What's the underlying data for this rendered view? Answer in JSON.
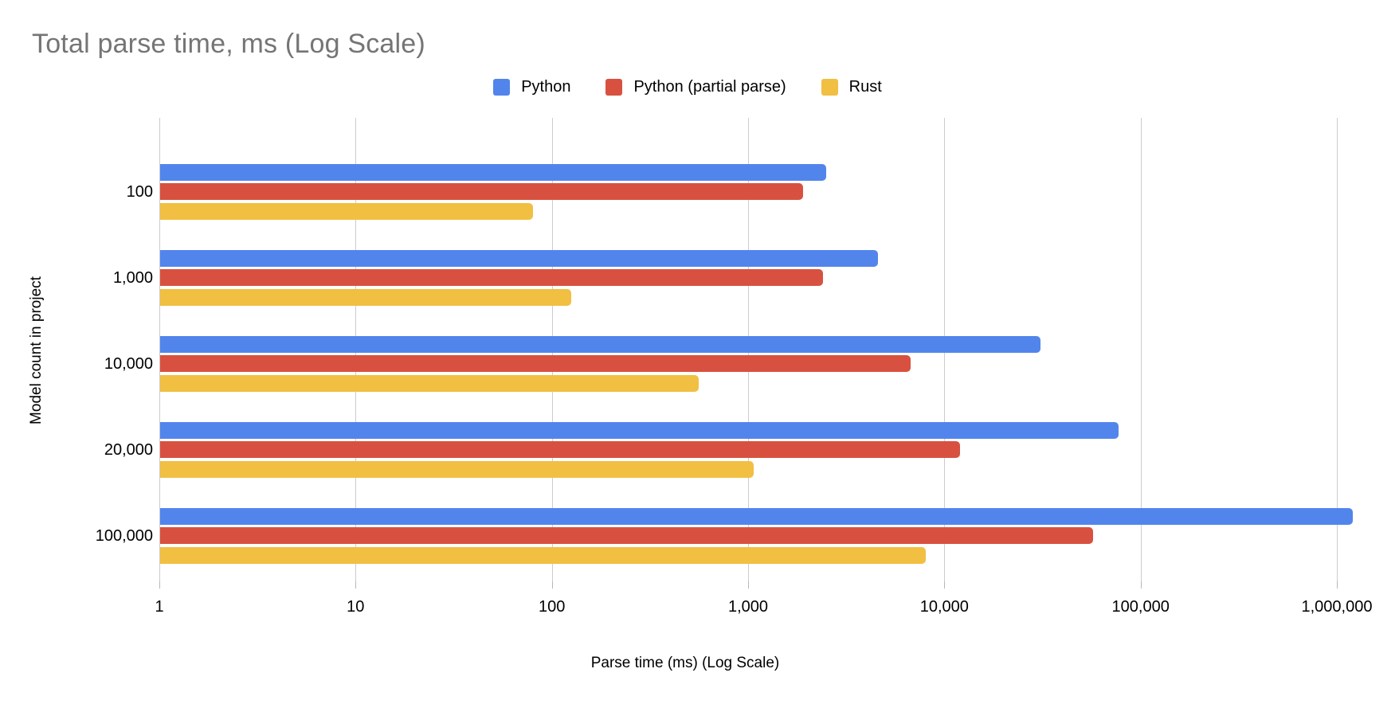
{
  "title": "Total parse time, ms (Log Scale)",
  "legend": {
    "items": [
      {
        "label": "Python",
        "color": "#5285EC",
        "icon": "blue-square-swatch"
      },
      {
        "label": "Python (partial parse)",
        "color": "#D85140",
        "icon": "red-square-swatch"
      },
      {
        "label": "Rust",
        "color": "#F1BF42",
        "icon": "yellow-square-swatch"
      }
    ]
  },
  "axes": {
    "x_title": "Parse time (ms) (Log Scale)",
    "y_title": "Model count in project"
  },
  "colors": {
    "title_text": "#757575",
    "gridline": "#cccccc",
    "tick_mark": "#b7b7b7",
    "label_text": "#000000",
    "background": "#ffffff"
  },
  "chart_data": {
    "type": "bar",
    "orientation": "horizontal",
    "x_scale": "log",
    "title": "Total parse time, ms (Log Scale)",
    "xlabel": "Parse time (ms) (Log Scale)",
    "ylabel": "Model count in project",
    "grid": true,
    "legend_position": "top-center",
    "categories": [
      "100",
      "1,000",
      "10,000",
      "20,000",
      "100,000"
    ],
    "x_ticks": [
      {
        "label": "1",
        "value": 1
      },
      {
        "label": "10",
        "value": 10
      },
      {
        "label": "100",
        "value": 100
      },
      {
        "label": "1,000",
        "value": 1000
      },
      {
        "label": "10,000",
        "value": 10000
      },
      {
        "label": "100,000",
        "value": 100000
      },
      {
        "label": "1,000,000",
        "value": 1000000
      }
    ],
    "xlim": [
      1,
      1000000
    ],
    "series": [
      {
        "name": "Python",
        "color": "#5285EC",
        "values": [
          2500,
          4600,
          31000,
          77000,
          1200000
        ]
      },
      {
        "name": "Python (partial parse)",
        "color": "#D85140",
        "values": [
          1900,
          2400,
          6700,
          12000,
          57000
        ]
      },
      {
        "name": "Rust",
        "color": "#F1BF42",
        "values": [
          80,
          125,
          560,
          1070,
          8000
        ]
      }
    ]
  }
}
